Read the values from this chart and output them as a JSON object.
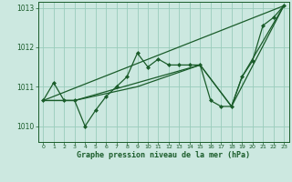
{
  "xlabel_bottom": "Graphe pression niveau de la mer (hPa)",
  "bg_color": "#cce8e0",
  "grid_color": "#99ccbb",
  "line_color": "#1a5c2a",
  "marker_color": "#1a5c2a",
  "ylim": [
    1009.6,
    1013.15
  ],
  "xlim": [
    -0.5,
    23.5
  ],
  "yticks": [
    1010,
    1011,
    1012,
    1013
  ],
  "xticks": [
    0,
    1,
    2,
    3,
    4,
    5,
    6,
    7,
    8,
    9,
    10,
    11,
    12,
    13,
    14,
    15,
    16,
    17,
    18,
    19,
    20,
    21,
    22,
    23
  ],
  "line1_x": [
    0,
    1,
    2,
    3,
    4,
    5,
    6,
    7,
    8,
    9,
    10,
    11,
    12,
    13,
    14,
    15,
    16,
    17,
    18,
    19,
    20,
    21,
    22,
    23
  ],
  "line1_y": [
    1010.65,
    1011.1,
    1010.65,
    1010.65,
    1010.0,
    1010.4,
    1010.75,
    1011.0,
    1011.25,
    1011.85,
    1011.5,
    1011.7,
    1011.55,
    1011.55,
    1011.55,
    1011.55,
    1010.65,
    1010.5,
    1010.5,
    1011.25,
    1011.65,
    1012.55,
    1012.75,
    1013.05
  ],
  "line2_x": [
    0,
    23
  ],
  "line2_y": [
    1010.65,
    1013.05
  ],
  "line3_x": [
    0,
    3,
    9,
    15,
    18,
    19,
    23
  ],
  "line3_y": [
    1010.65,
    1010.65,
    1011.1,
    1011.55,
    1010.5,
    1011.25,
    1013.05
  ],
  "line4_x": [
    0,
    3,
    9,
    15,
    18,
    23
  ],
  "line4_y": [
    1010.65,
    1010.65,
    1011.0,
    1011.55,
    1010.5,
    1013.05
  ]
}
